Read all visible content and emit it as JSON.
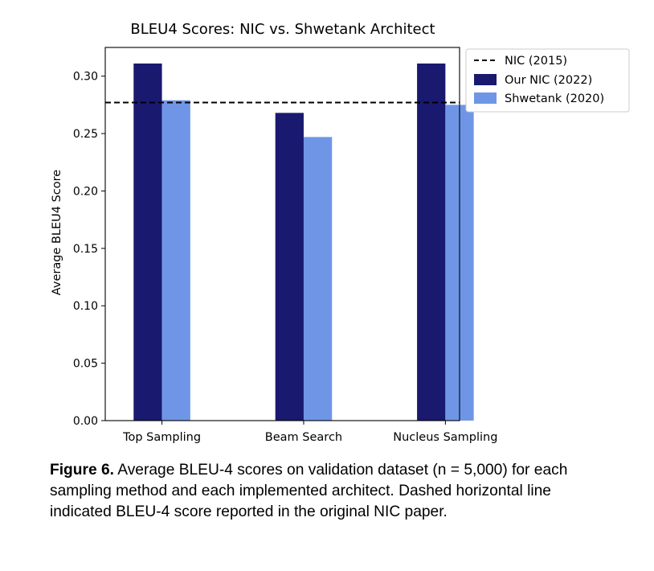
{
  "chart_data": {
    "type": "bar",
    "title": "BLEU4 Scores: NIC vs. Shwetank Architect",
    "xlabel": "",
    "ylabel": "Average BLEU4 Score",
    "categories": [
      "Top Sampling",
      "Beam Search",
      "Nucleus Sampling"
    ],
    "series": [
      {
        "name": "Our NIC (2022)",
        "color": "#191970",
        "values": [
          0.311,
          0.268,
          0.311
        ]
      },
      {
        "name": "Shwetank (2020)",
        "color": "#6f96e6",
        "values": [
          0.279,
          0.247,
          0.275
        ]
      }
    ],
    "reference_lines": [
      {
        "name": "NIC (2015)",
        "value": 0.277,
        "style": "dashed",
        "color": "#000000"
      }
    ],
    "ylim": [
      0,
      0.325
    ],
    "yticks": [
      0.0,
      0.05,
      0.1,
      0.15,
      0.2,
      0.25,
      0.3
    ],
    "ytick_labels": [
      "0.00",
      "0.05",
      "0.10",
      "0.15",
      "0.20",
      "0.25",
      "0.30"
    ],
    "grid": false,
    "legend_position": "outside-right-top",
    "legend": [
      "NIC (2015)",
      "Our NIC (2022)",
      "Shwetank (2020)"
    ]
  },
  "caption": {
    "label": "Figure 6.",
    "text": " Average BLEU-4 scores on validation dataset (n = 5,000) for each sampling method and each implemented architect. Dashed horizontal line indicated BLEU-4 score reported in the original NIC paper."
  }
}
